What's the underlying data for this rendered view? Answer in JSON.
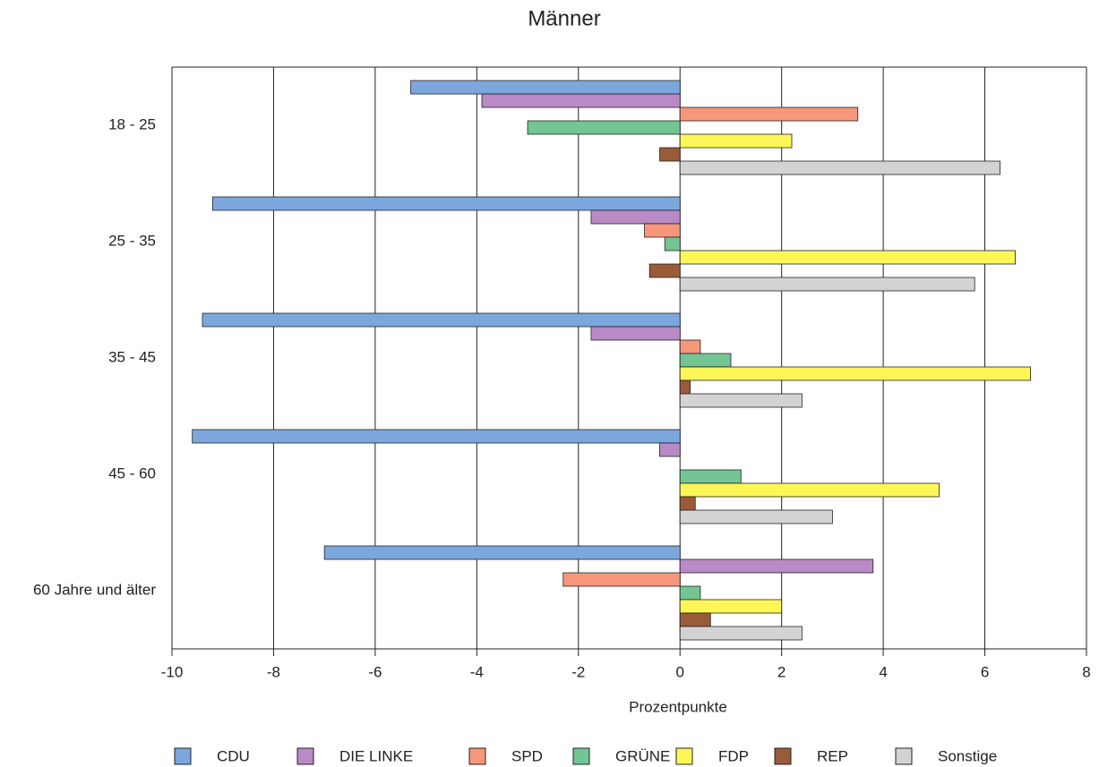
{
  "chart_data": {
    "type": "bar",
    "orientation": "horizontal",
    "title": "Männer",
    "x_label": "Prozentpunkte",
    "categories": [
      "18 - 25",
      "25 - 35",
      "35 - 45",
      "45 - 60",
      "60 Jahre und älter"
    ],
    "series": [
      {
        "name": "CDU",
        "color": "#7ba7dd",
        "values": [
          -5.3,
          -9.2,
          -9.4,
          -9.6,
          -7.0
        ]
      },
      {
        "name": "DIE LINKE",
        "color": "#b98ac5",
        "values": [
          -3.9,
          -1.75,
          -1.75,
          -0.4,
          3.8
        ]
      },
      {
        "name": "SPD",
        "color": "#f6977b",
        "values": [
          3.5,
          -0.7,
          0.4,
          null,
          -2.3
        ]
      },
      {
        "name": "GRÜNE",
        "color": "#74c594",
        "values": [
          -3.0,
          -0.3,
          1.0,
          1.2,
          0.4
        ]
      },
      {
        "name": "FDP",
        "color": "#fdf657",
        "values": [
          2.2,
          6.6,
          6.9,
          5.1,
          2.0
        ]
      },
      {
        "name": "REP",
        "color": "#9a5b3a",
        "values": [
          -0.4,
          -0.6,
          0.2,
          0.3,
          0.6
        ]
      },
      {
        "name": "Sonstige",
        "color": "#d3d3d3",
        "values": [
          6.3,
          5.8,
          2.4,
          3.0,
          2.4
        ]
      }
    ],
    "xlim": [
      -10,
      8
    ],
    "xticks": [
      -10,
      -8,
      -6,
      -4,
      -2,
      0,
      2,
      4,
      6,
      8
    ],
    "grid": true,
    "legend": "bottom"
  }
}
